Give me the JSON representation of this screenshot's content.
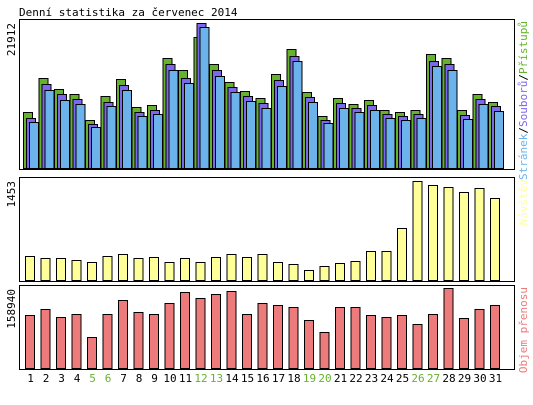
{
  "chart_data": {
    "type": "bar",
    "title": "Denní statistika za červenec 2014",
    "categories": [
      "1",
      "2",
      "3",
      "4",
      "5",
      "6",
      "7",
      "8",
      "9",
      "10",
      "11",
      "12",
      "13",
      "14",
      "15",
      "16",
      "17",
      "18",
      "19",
      "20",
      "21",
      "22",
      "23",
      "24",
      "25",
      "26",
      "27",
      "28",
      "29",
      "30",
      "31"
    ],
    "weekend_days": [
      "5",
      "6",
      "12",
      "13",
      "19",
      "20",
      "26",
      "27"
    ],
    "panels": [
      {
        "name": "top",
        "scale_label": "21912",
        "side_labels": [
          "Stránek",
          "Souborů",
          "Přístupů"
        ],
        "series": [
          {
            "name": "Přístupů",
            "color": "#66b22e",
            "values": [
              8500,
              13700,
              12000,
              11300,
              7300,
              11000,
              13500,
              9300,
              9600,
              16700,
              14800,
              19800,
              15800,
              13100,
              11700,
              10600,
              14200,
              18000,
              11600,
              8000,
              10700,
              9800,
              10300,
              8900,
              8500,
              8800,
              17200,
              16700,
              8800,
              11300,
              10100
            ]
          },
          {
            "name": "Souborů",
            "color": "#7b68ee",
            "values": [
              7700,
              12700,
              11200,
              10500,
              6800,
              10100,
              12600,
              8600,
              8900,
              15700,
              13700,
              21912,
              14800,
              12300,
              10900,
              9900,
              13300,
              17000,
              10800,
              7400,
              9900,
              9100,
              9600,
              8300,
              7900,
              8200,
              16200,
              15700,
              8100,
              10500,
              9400
            ]
          },
          {
            "name": "Stránek",
            "color": "#6cb3ec",
            "values": [
              7100,
              11900,
              10400,
              9700,
              6300,
              9400,
              11800,
              7900,
              8200,
              14800,
              12900,
              21300,
              13900,
              11500,
              10200,
              9200,
              12500,
              16200,
              10000,
              6900,
              9200,
              8500,
              8900,
              7700,
              7300,
              7600,
              15400,
              14900,
              7500,
              9800,
              8700
            ]
          }
        ]
      },
      {
        "name": "middle",
        "scale_label": "1453",
        "side_labels": [
          "Návštěv"
        ],
        "series": [
          {
            "name": "Návštěv",
            "color": "#ffff99",
            "values": [
              360,
              330,
              330,
              310,
              280,
              360,
              390,
              340,
              350,
              280,
              330,
              280,
              350,
              390,
              350,
              390,
              280,
              240,
              160,
              220,
              260,
              290,
              440,
              440,
              770,
              1453,
              1400,
              1360,
              1290,
              1350,
              1200
            ]
          }
        ]
      },
      {
        "name": "bottom",
        "scale_label": "158940",
        "side_labels": [
          "Objem přenosu"
        ],
        "series": [
          {
            "name": "Objem přenosu",
            "color": "#ee7b7b",
            "values": [
              105000,
              117000,
              102000,
              107000,
              63000,
              107000,
              136000,
              112000,
              107000,
              129000,
              152000,
              140000,
              147000,
              153000,
              107000,
              129000,
              126000,
              122000,
              96000,
              73000,
              121000,
              121000,
              106000,
              103000,
              105000,
              88000,
              107000,
              158940,
              100000,
              117000,
              126000
            ]
          }
        ]
      }
    ]
  }
}
